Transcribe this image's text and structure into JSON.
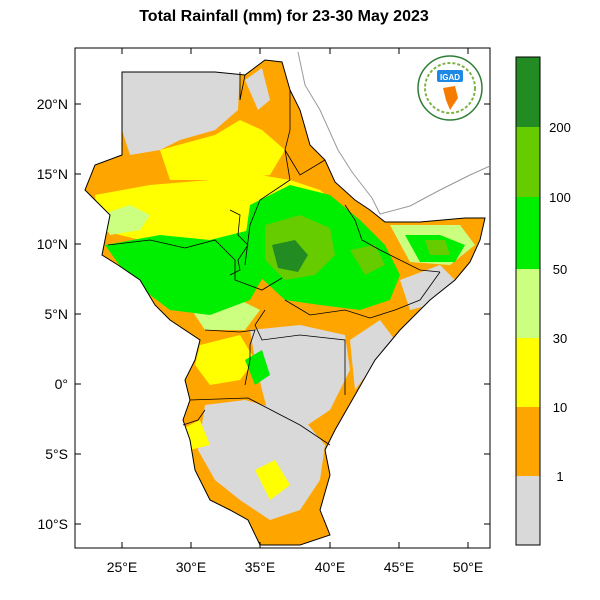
{
  "title": "Total Rainfall (mm) for 23-30 May 2023",
  "logo_text": "IGAD",
  "colors": {
    "no_data_land": "#d9d9d9",
    "ocean": "#ffffff",
    "border": "#000000",
    "coast": "#888888"
  },
  "legend": {
    "classes": [
      {
        "range": "<1",
        "color": "#d9d9d9"
      },
      {
        "range": "1-10",
        "color": "#ffa500"
      },
      {
        "range": "10-30",
        "color": "#ffff00"
      },
      {
        "range": "30-50",
        "color": "#ccff80"
      },
      {
        "range": "50-100",
        "color": "#00ee00"
      },
      {
        "range": "100-200",
        "color": "#66cc00"
      },
      {
        "range": ">200",
        "color": "#228b22"
      }
    ],
    "tick_labels": [
      "1",
      "10",
      "30",
      "50",
      "100",
      "200"
    ]
  },
  "axes": {
    "lat_labels": [
      "20°N",
      "15°N",
      "10°N",
      "5°N",
      "0°",
      "5°S",
      "10°S"
    ],
    "lon_labels": [
      "25°E",
      "30°E",
      "35°E",
      "40°E",
      "45°E",
      "50°E"
    ]
  }
}
